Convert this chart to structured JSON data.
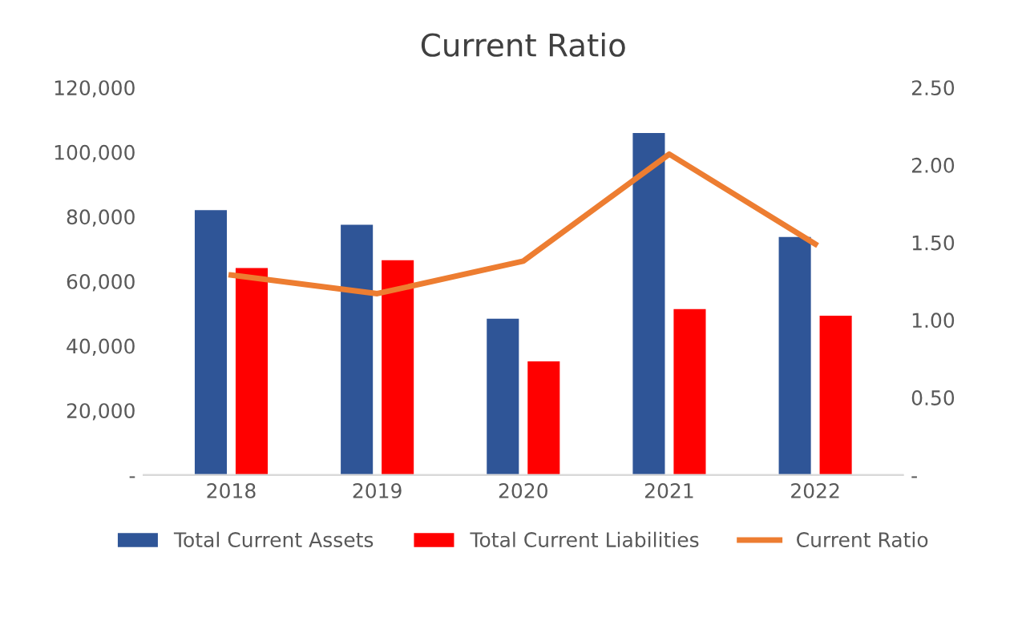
{
  "chart_data": {
    "type": "bar",
    "title": "Current Ratio",
    "categories": [
      "2018",
      "2019",
      "2020",
      "2021",
      "2022"
    ],
    "series": [
      {
        "name": "Total Current Assets",
        "color": "#2f5597",
        "values": [
          82000,
          77500,
          48400,
          105900,
          73700
        ]
      },
      {
        "name": "Total Current Liabilities",
        "color": "#ff0000",
        "values": [
          64100,
          66500,
          35200,
          51400,
          49300
        ]
      },
      {
        "name": "Current Ratio",
        "color": "#ed7d31",
        "type": "line",
        "axis": "y2",
        "values": [
          1.29,
          1.17,
          1.38,
          2.07,
          1.49
        ]
      }
    ],
    "ylim": [
      0,
      120000
    ],
    "yticks": [
      {
        "value": 0,
        "label": "-"
      },
      {
        "value": 20000,
        "label": "20,000"
      },
      {
        "value": 40000,
        "label": "40,000"
      },
      {
        "value": 60000,
        "label": "60,000"
      },
      {
        "value": 80000,
        "label": "80,000"
      },
      {
        "value": 100000,
        "label": "100,000"
      },
      {
        "value": 120000,
        "label": "120,000"
      }
    ],
    "y2lim": [
      0,
      2.5
    ],
    "y2ticks": [
      {
        "value": 0,
        "label": "-"
      },
      {
        "value": 0.5,
        "label": "0.50"
      },
      {
        "value": 1,
        "label": "1.00"
      },
      {
        "value": 1.5,
        "label": "1.50"
      },
      {
        "value": 2,
        "label": "2.00"
      },
      {
        "value": 2.5,
        "label": "2.50"
      }
    ],
    "grid": false,
    "legend": "bottom"
  }
}
